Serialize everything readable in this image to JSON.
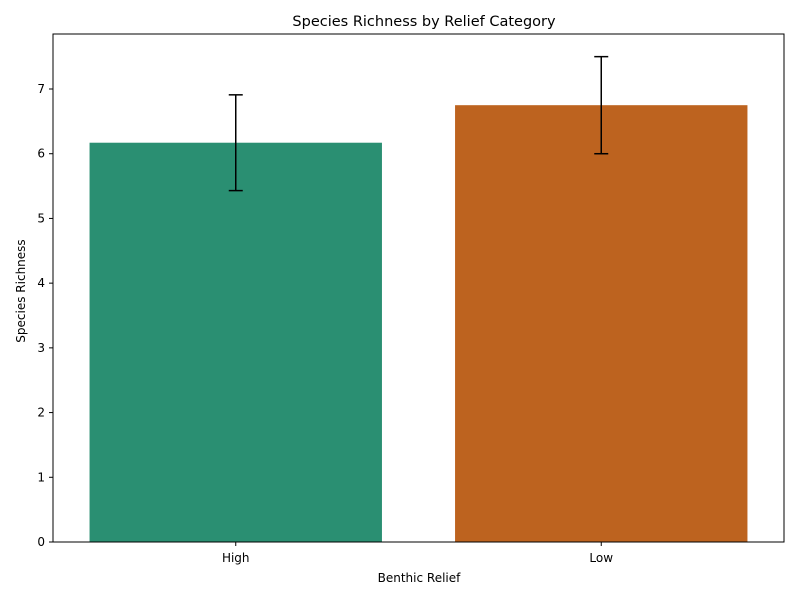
{
  "chart_data": {
    "type": "bar",
    "title": "Species Richness by Relief Category",
    "xlabel": "Benthic Relief",
    "ylabel": "Species Richness",
    "categories": [
      "High",
      "Low"
    ],
    "values": [
      6.17,
      6.75
    ],
    "errors": [
      {
        "low": 5.43,
        "high": 6.91
      },
      {
        "low": 6.0,
        "high": 7.5
      }
    ],
    "colors": [
      "#2a8f72",
      "#bd631f"
    ],
    "ylim": [
      0,
      7.85
    ],
    "yticks": [
      0,
      1,
      2,
      3,
      4,
      5,
      6,
      7
    ],
    "grid": false,
    "legend": "none"
  }
}
